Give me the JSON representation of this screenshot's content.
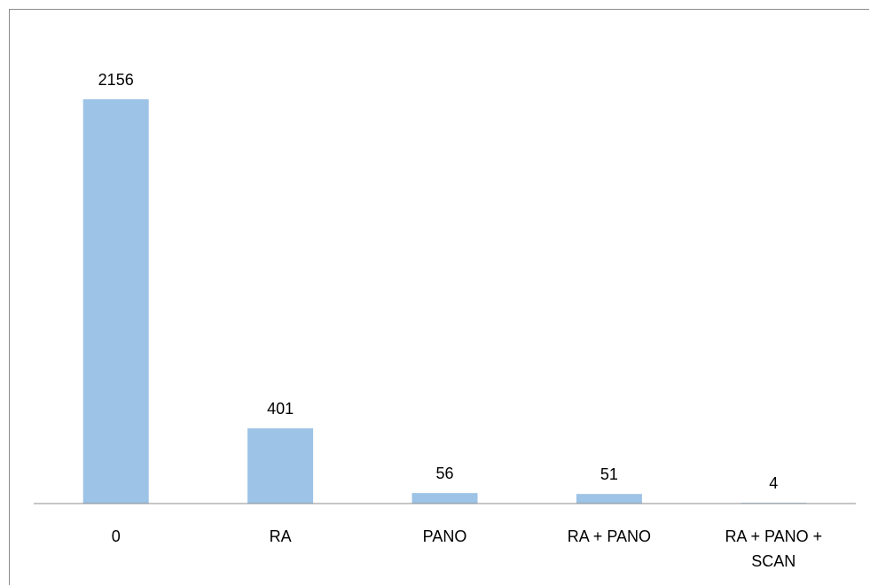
{
  "chart_data": {
    "type": "bar",
    "categories": [
      [
        "0"
      ],
      [
        "RA"
      ],
      [
        "PANO"
      ],
      [
        "RA + PANO"
      ],
      [
        "RA + PANO +",
        "SCAN"
      ]
    ],
    "values": [
      2156,
      401,
      56,
      51,
      4
    ],
    "data_labels": [
      "2156",
      "401",
      "56",
      "51",
      "4"
    ],
    "title": "",
    "xlabel": "",
    "ylabel": "",
    "ylim": [
      0,
      2500
    ],
    "grid": false,
    "legend": "none",
    "bar_color": "#9dc3e6",
    "axis_color": "#8c8c8c"
  }
}
